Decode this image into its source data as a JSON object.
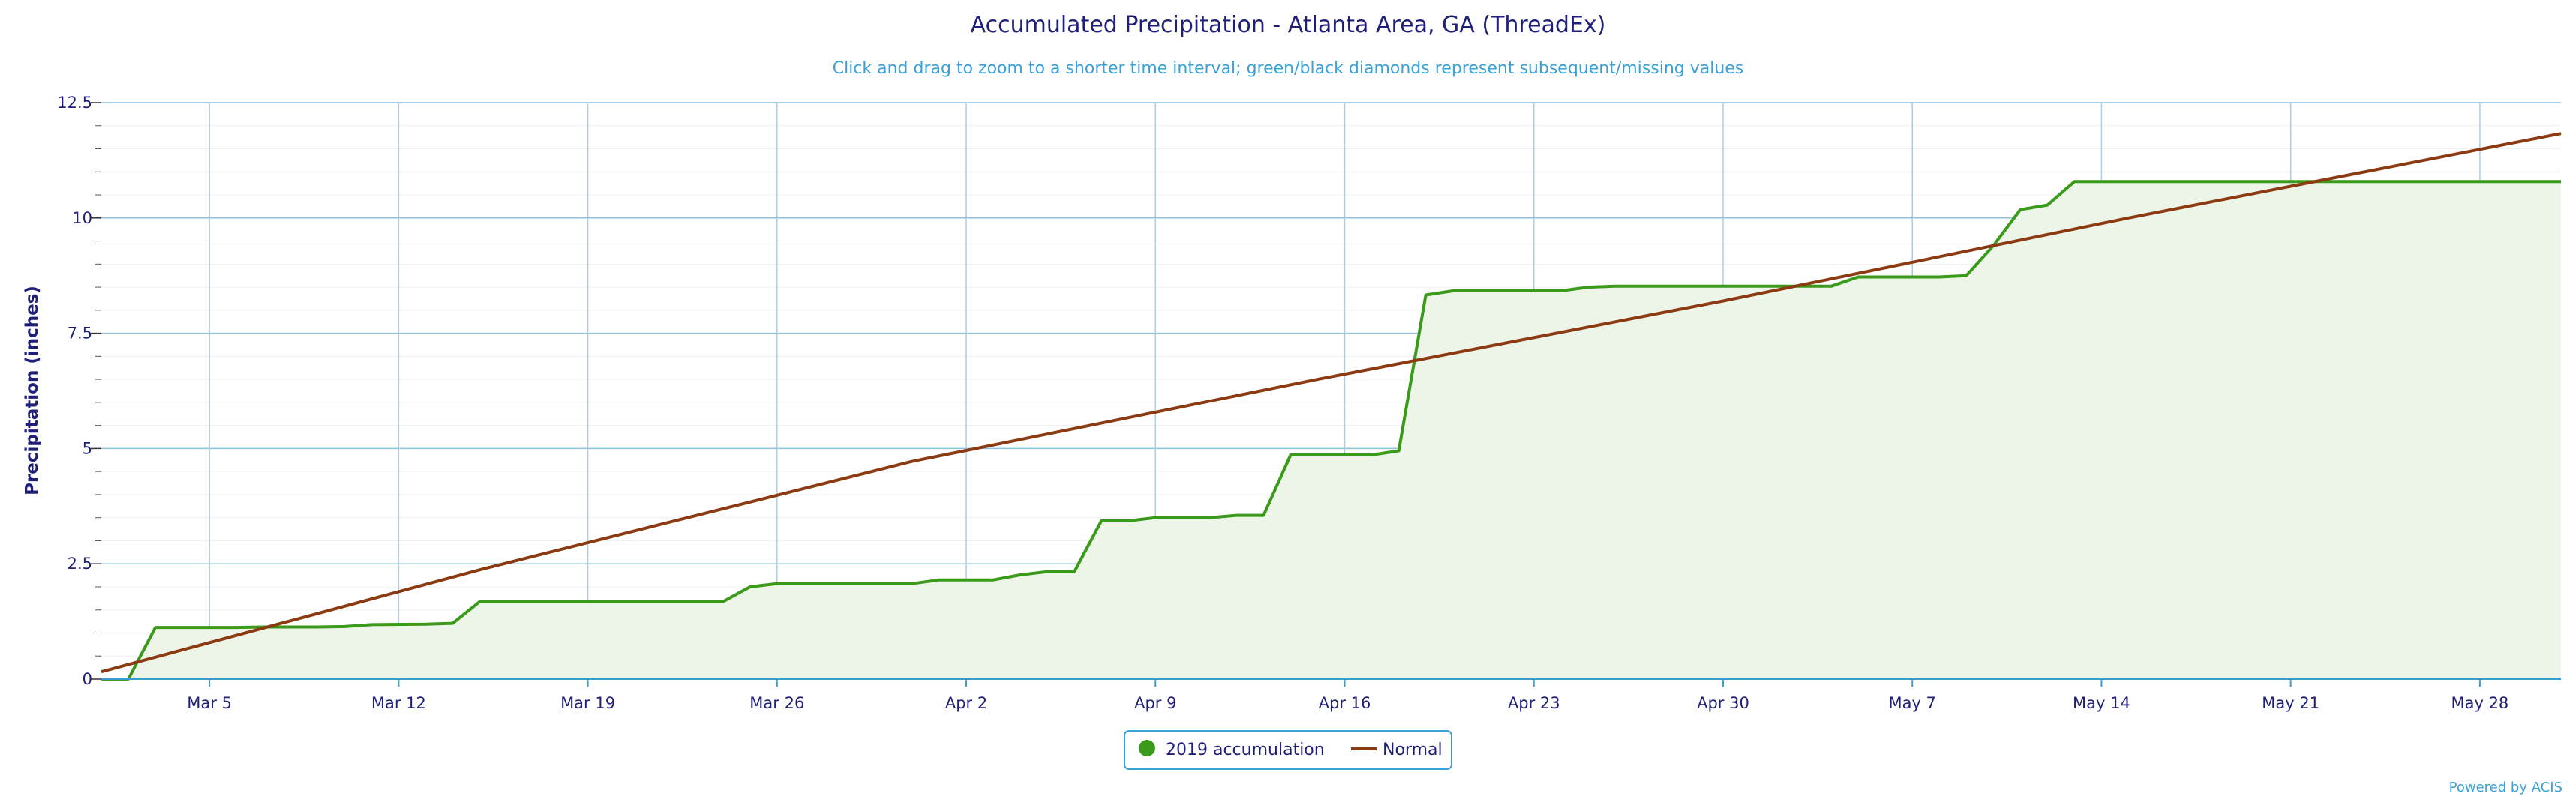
{
  "chart_data": {
    "type": "line",
    "title": "Accumulated Precipitation - Atlanta Area, GA (ThreadEx)",
    "subtitle": "Click and drag to zoom to a shorter time interval; green/black diamonds represent subsequent/missing values",
    "ylabel": "Precipitation (inches)",
    "xlabel": "",
    "credit": "Powered by ACIS",
    "x_range": [
      "2019-03-01",
      "2019-05-31"
    ],
    "ylim": [
      0,
      12.5
    ],
    "y_ticks": [
      0,
      2.5,
      5,
      7.5,
      10,
      12.5
    ],
    "y_tick_labels": [
      "0",
      "2.5",
      "5",
      "7.5",
      "10",
      "12.5"
    ],
    "x_ticks": [
      "2019-03-05",
      "2019-03-12",
      "2019-03-19",
      "2019-03-26",
      "2019-04-02",
      "2019-04-09",
      "2019-04-16",
      "2019-04-23",
      "2019-04-30",
      "2019-05-07",
      "2019-05-14",
      "2019-05-21",
      "2019-05-28"
    ],
    "x_tick_labels": [
      "Mar 5",
      "Mar 12",
      "Mar 19",
      "Mar 26",
      "Apr 2",
      "Apr 9",
      "Apr 16",
      "Apr 23",
      "Apr 30",
      "May 7",
      "May 14",
      "May 21",
      "May 28"
    ],
    "grid": true,
    "legend_position": "bottom-center",
    "series": [
      {
        "name": "2019 accumulation",
        "color": "#3a9a1a",
        "fill": "#edf5e8",
        "marker": "circle",
        "points": [
          [
            "2019-03-01",
            0
          ],
          [
            "2019-03-02",
            0
          ],
          [
            "2019-03-03",
            1.12
          ],
          [
            "2019-03-06",
            1.12
          ],
          [
            "2019-03-07",
            1.13
          ],
          [
            "2019-03-08",
            1.13
          ],
          [
            "2019-03-09",
            1.13
          ],
          [
            "2019-03-10",
            1.14
          ],
          [
            "2019-03-11",
            1.18
          ],
          [
            "2019-03-13",
            1.19
          ],
          [
            "2019-03-14",
            1.21
          ],
          [
            "2019-03-15",
            1.68
          ],
          [
            "2019-03-24",
            1.68
          ],
          [
            "2019-03-25",
            2.0
          ],
          [
            "2019-03-26",
            2.07
          ],
          [
            "2019-03-31",
            2.07
          ],
          [
            "2019-04-01",
            2.15
          ],
          [
            "2019-04-03",
            2.15
          ],
          [
            "2019-04-04",
            2.26
          ],
          [
            "2019-04-05",
            2.33
          ],
          [
            "2019-04-06",
            2.33
          ],
          [
            "2019-04-07",
            3.43
          ],
          [
            "2019-04-08",
            3.43
          ],
          [
            "2019-04-09",
            3.5
          ],
          [
            "2019-04-11",
            3.5
          ],
          [
            "2019-04-12",
            3.55
          ],
          [
            "2019-04-13",
            3.55
          ],
          [
            "2019-04-14",
            4.86
          ],
          [
            "2019-04-17",
            4.86
          ],
          [
            "2019-04-18",
            4.95
          ],
          [
            "2019-04-19",
            8.33
          ],
          [
            "2019-04-20",
            8.42
          ],
          [
            "2019-04-24",
            8.42
          ],
          [
            "2019-04-25",
            8.5
          ],
          [
            "2019-04-26",
            8.52
          ],
          [
            "2019-05-04",
            8.52
          ],
          [
            "2019-05-05",
            8.72
          ],
          [
            "2019-05-08",
            8.72
          ],
          [
            "2019-05-09",
            8.75
          ],
          [
            "2019-05-10",
            9.4
          ],
          [
            "2019-05-11",
            10.18
          ],
          [
            "2019-05-12",
            10.28
          ],
          [
            "2019-05-13",
            10.79
          ],
          [
            "2019-05-31",
            10.79
          ]
        ]
      },
      {
        "name": "Normal",
        "color": "#8b3a12",
        "points": [
          [
            "2019-03-01",
            0.16
          ],
          [
            "2019-03-15",
            2.37
          ],
          [
            "2019-03-31",
            4.72
          ],
          [
            "2019-04-15",
            6.5
          ],
          [
            "2019-04-30",
            8.2
          ],
          [
            "2019-05-15",
            10.0
          ],
          [
            "2019-05-31",
            11.83
          ]
        ]
      }
    ]
  }
}
